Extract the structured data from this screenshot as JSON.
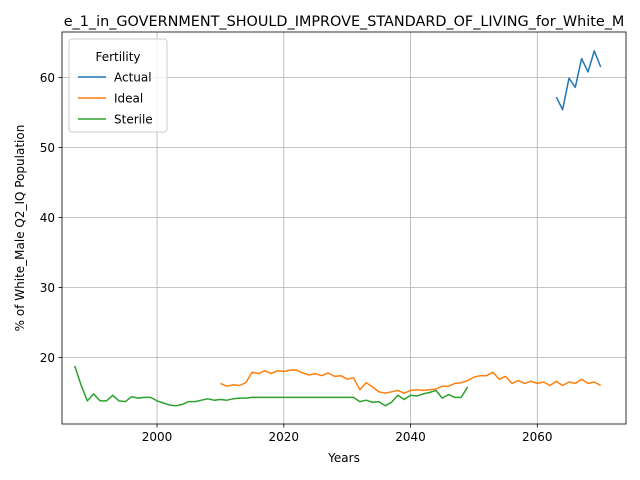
{
  "chart_data": {
    "type": "line",
    "title": "e_1_in_GOVERNMENT_SHOULD_IMPROVE_STANDARD_OF_LIVING_for_White_M",
    "xlabel": "Years",
    "ylabel": "% of White_Male Q2_IQ Population",
    "xlim": [
      1985,
      2074
    ],
    "ylim": [
      10.5,
      66.5
    ],
    "xticks": [
      2000,
      2020,
      2040,
      2060
    ],
    "yticks": [
      20,
      30,
      40,
      50,
      60
    ],
    "grid": true,
    "legend": {
      "title": "Fertility",
      "placement": "upper-left"
    },
    "series": [
      {
        "name": "Actual",
        "color": "#1f77b4",
        "x": [
          2063,
          2064,
          2065,
          2066,
          2067,
          2068,
          2069,
          2070
        ],
        "values": [
          57.2,
          55.4,
          59.9,
          58.6,
          62.7,
          60.8,
          63.8,
          61.5
        ]
      },
      {
        "name": "Ideal",
        "color": "#ff7f0e",
        "x": [
          2010,
          2011,
          2012,
          2013,
          2014,
          2015,
          2016,
          2017,
          2018,
          2019,
          2020,
          2021,
          2022,
          2023,
          2024,
          2025,
          2026,
          2027,
          2028,
          2029,
          2030,
          2031,
          2032,
          2033,
          2034,
          2035,
          2036,
          2037,
          2038,
          2039,
          2040,
          2041,
          2042,
          2043,
          2044,
          2045,
          2046,
          2047,
          2048,
          2049,
          2050,
          2051,
          2052,
          2053,
          2054,
          2055,
          2056,
          2057,
          2058,
          2059,
          2060,
          2061,
          2062,
          2063,
          2064,
          2065,
          2066,
          2067,
          2068,
          2069,
          2070
        ],
        "values": [
          16.3,
          15.9,
          16.1,
          16.0,
          16.4,
          17.9,
          17.7,
          18.1,
          17.7,
          18.1,
          18.0,
          18.2,
          18.2,
          17.8,
          17.5,
          17.7,
          17.4,
          17.8,
          17.3,
          17.4,
          16.9,
          17.1,
          15.4,
          16.4,
          15.8,
          15.1,
          14.9,
          15.1,
          15.3,
          14.9,
          15.3,
          15.4,
          15.3,
          15.4,
          15.5,
          15.9,
          15.9,
          16.3,
          16.4,
          16.7,
          17.2,
          17.4,
          17.4,
          17.9,
          16.9,
          17.3,
          16.3,
          16.7,
          16.3,
          16.6,
          16.3,
          16.5,
          16.0,
          16.6,
          16.0,
          16.5,
          16.3,
          16.9,
          16.3,
          16.5,
          16.0
        ]
      },
      {
        "name": "Sterile",
        "color": "#2ca02c",
        "x": [
          1987,
          1988,
          1989,
          1990,
          1991,
          1992,
          1993,
          1994,
          1995,
          1996,
          1997,
          1998,
          1999,
          2000,
          2001,
          2002,
          2003,
          2004,
          2005,
          2006,
          2007,
          2008,
          2009,
          2010,
          2011,
          2012,
          2013,
          2014,
          2015,
          2016,
          2017,
          2018,
          2019,
          2020,
          2021,
          2022,
          2023,
          2024,
          2025,
          2026,
          2027,
          2028,
          2029,
          2030,
          2031,
          2032,
          2033,
          2034,
          2035,
          2036,
          2037,
          2038,
          2039,
          2040,
          2041,
          2042,
          2043,
          2044,
          2045,
          2046,
          2047,
          2048,
          2049
        ],
        "values": [
          18.8,
          16.1,
          13.8,
          14.8,
          13.8,
          13.8,
          14.6,
          13.8,
          13.7,
          14.4,
          14.2,
          14.3,
          14.3,
          13.8,
          13.5,
          13.2,
          13.1,
          13.3,
          13.7,
          13.7,
          13.9,
          14.1,
          13.9,
          14.0,
          13.9,
          14.1,
          14.2,
          14.2,
          14.3,
          14.3,
          14.3,
          14.3,
          14.3,
          14.3,
          14.3,
          14.3,
          14.3,
          14.3,
          14.3,
          14.3,
          14.3,
          14.3,
          14.3,
          14.3,
          14.3,
          13.7,
          13.9,
          13.6,
          13.7,
          13.1,
          13.6,
          14.6,
          14.0,
          14.6,
          14.5,
          14.8,
          15.0,
          15.3,
          14.2,
          14.7,
          14.3,
          14.3,
          15.8
        ]
      }
    ]
  }
}
